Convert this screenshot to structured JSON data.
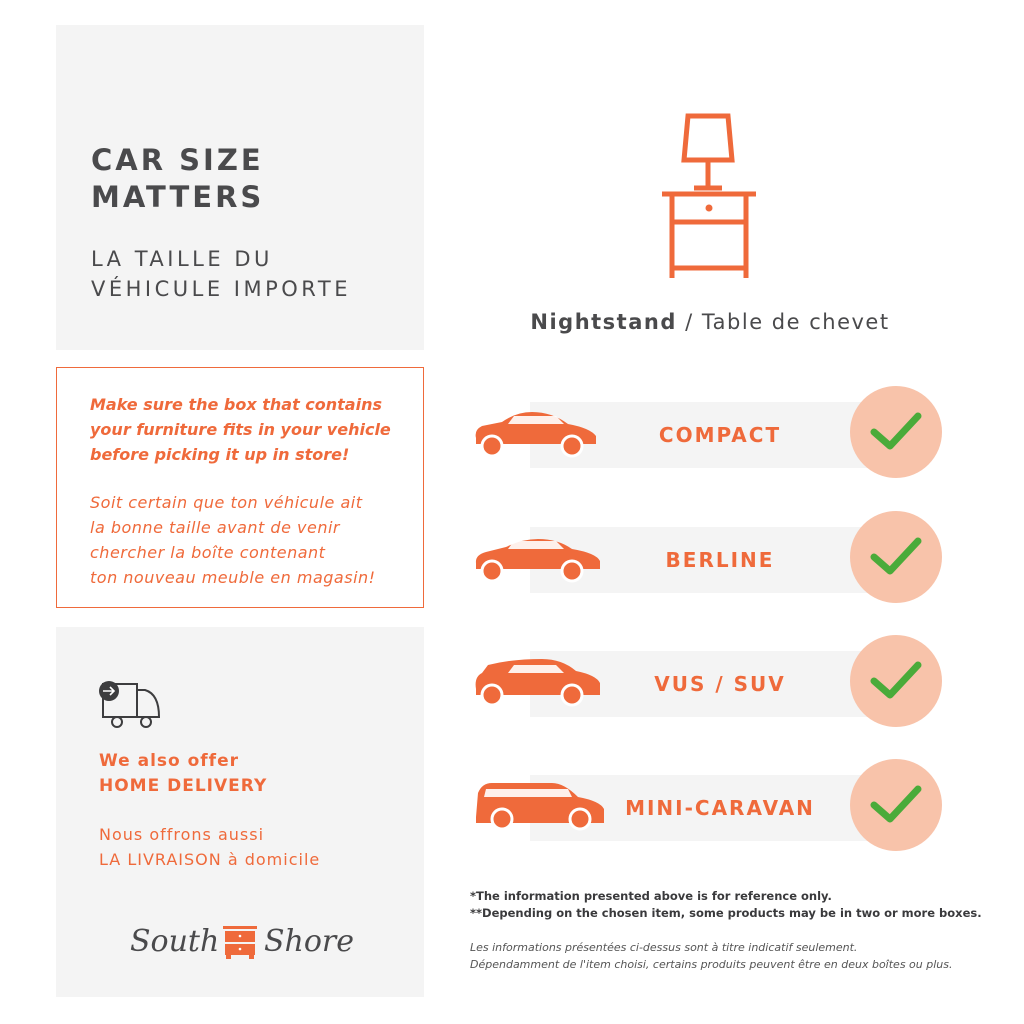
{
  "header": {
    "title_line1": "CAR SIZE",
    "title_line2": "MATTERS",
    "subtitle_line1": "LA TAILLE DU",
    "subtitle_line2": "VÉHICULE IMPORTE"
  },
  "notice": {
    "en": [
      "Make sure the box that contains",
      "your furniture fits in your vehicle",
      "before picking it up in store!"
    ],
    "fr": [
      "Soit certain que ton véhicule ait",
      "la bonne taille avant de venir",
      "chercher la boîte contenant",
      "ton nouveau meuble en magasin!"
    ]
  },
  "delivery": {
    "en_line1": "We also offer",
    "en_line2": "HOME DELIVERY",
    "fr_line1": "Nous offrons aussi",
    "fr_line2": "LA LIVRAISON à domicile",
    "icon": "delivery-truck-icon"
  },
  "logo": {
    "text_left": "South",
    "text_right": "Shore"
  },
  "product": {
    "name": "Nightstand",
    "separator": " / ",
    "name_fr": "Table de chevet",
    "icon": "nightstand-icon"
  },
  "vehicles": [
    {
      "label": "COMPACT",
      "fits": true
    },
    {
      "label": "BERLINE",
      "fits": true
    },
    {
      "label": "VUS / SUV",
      "fits": true
    },
    {
      "label": "MINI-CARAVAN",
      "fits": true
    }
  ],
  "footnotes": {
    "en": [
      "*The information presented above is for reference only.",
      "**Depending on the chosen item, some products may be in two or more boxes."
    ],
    "fr": [
      "Les informations présentées ci-dessus sont à titre indicatif seulement.",
      "Dépendamment de l'item choisi, certains produits peuvent être en deux boîtes ou plus."
    ]
  },
  "colors": {
    "accent": "#ef6a3b",
    "panel": "#f4f4f4",
    "text": "#4a4a4c",
    "check": "#4aab3a",
    "check_bg": "#f8c3aa"
  }
}
